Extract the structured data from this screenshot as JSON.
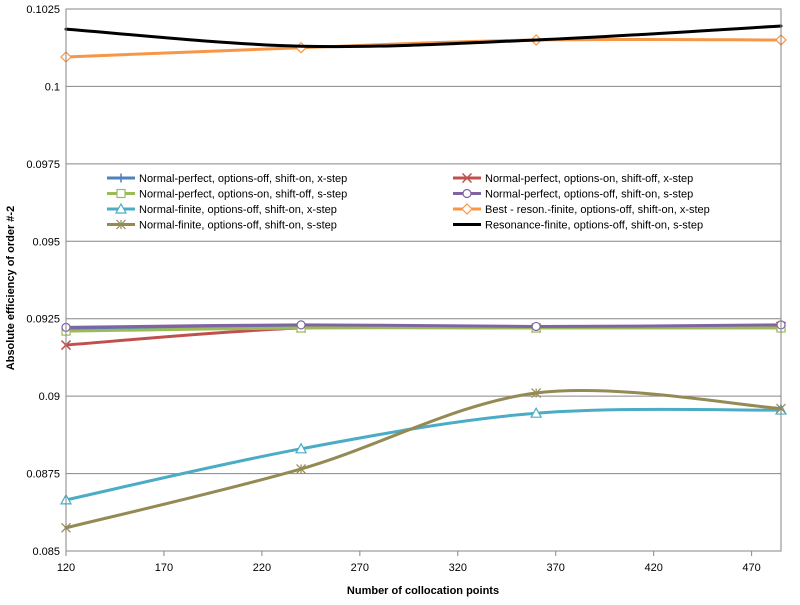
{
  "chart_data": {
    "type": "line",
    "xlabel": "Number of collocation points",
    "ylabel": "Absolute efficiency of order #-2",
    "xlim": [
      120,
      485
    ],
    "ylim": [
      0.085,
      0.1025
    ],
    "x_ticks": [
      120,
      170,
      220,
      270,
      320,
      370,
      420,
      470
    ],
    "y_ticks": [
      0.085,
      0.0875,
      0.09,
      0.0925,
      0.095,
      0.0975,
      0.1,
      0.1025
    ],
    "x_tick_labels": [
      "120",
      "170",
      "220",
      "270",
      "320",
      "370",
      "420",
      "470"
    ],
    "y_tick_labels": [
      "0.085",
      "0.0875",
      "0.09",
      "0.0925",
      "0.095",
      "0.0975",
      "0.1",
      "0.1025"
    ],
    "grid": "horizontal",
    "legend_position": "inside-middle",
    "series": [
      {
        "name": "Normal-perfect, options-off, shift-on, x-step",
        "color": "#4f81bd",
        "marker": "plus",
        "x": [
          120,
          240,
          360,
          485
        ],
        "y": [
          0.09215,
          0.09225,
          0.0922,
          0.09225
        ]
      },
      {
        "name": "Normal-perfect, options-on, shift-off, x-step",
        "color": "#c0504d",
        "marker": "x",
        "x": [
          120,
          240,
          360,
          485
        ],
        "y": [
          0.09165,
          0.0922,
          0.0922,
          0.09225
        ]
      },
      {
        "name": "Normal-perfect, options-on, shift-off, s-step",
        "color": "#9bbb59",
        "marker": "square",
        "x": [
          120,
          240,
          360,
          485
        ],
        "y": [
          0.0921,
          0.0922,
          0.0922,
          0.0922
        ]
      },
      {
        "name": "Normal-perfect, options-off, shift-on, s-step",
        "color": "#8064a2",
        "marker": "circle",
        "x": [
          120,
          240,
          360,
          485
        ],
        "y": [
          0.09222,
          0.0923,
          0.09225,
          0.0923
        ]
      },
      {
        "name": "Normal-finite, options-off, shift-on, x-step",
        "color": "#4bacc6",
        "marker": "triangle",
        "x": [
          120,
          240,
          360,
          485
        ],
        "y": [
          0.08665,
          0.0883,
          0.08945,
          0.08955
        ]
      },
      {
        "name": "Best - reson.-finite, options-off, shift-on, x-step",
        "color": "#f79646",
        "marker": "diamond",
        "x": [
          120,
          240,
          360,
          485
        ],
        "y": [
          0.10095,
          0.10125,
          0.1015,
          0.1015
        ]
      },
      {
        "name": "Normal-finite, options-off, shift-on, s-step",
        "color": "#948a54",
        "marker": "star",
        "x": [
          120,
          240,
          360,
          485
        ],
        "y": [
          0.08575,
          0.08765,
          0.0901,
          0.0896
        ]
      },
      {
        "name": "Resonance-finite, options-off, shift-on, s-step",
        "color": "#000000",
        "marker": "none",
        "x": [
          120,
          240,
          360,
          485
        ],
        "y": [
          0.10185,
          0.1013,
          0.1015,
          0.10195
        ]
      }
    ]
  }
}
